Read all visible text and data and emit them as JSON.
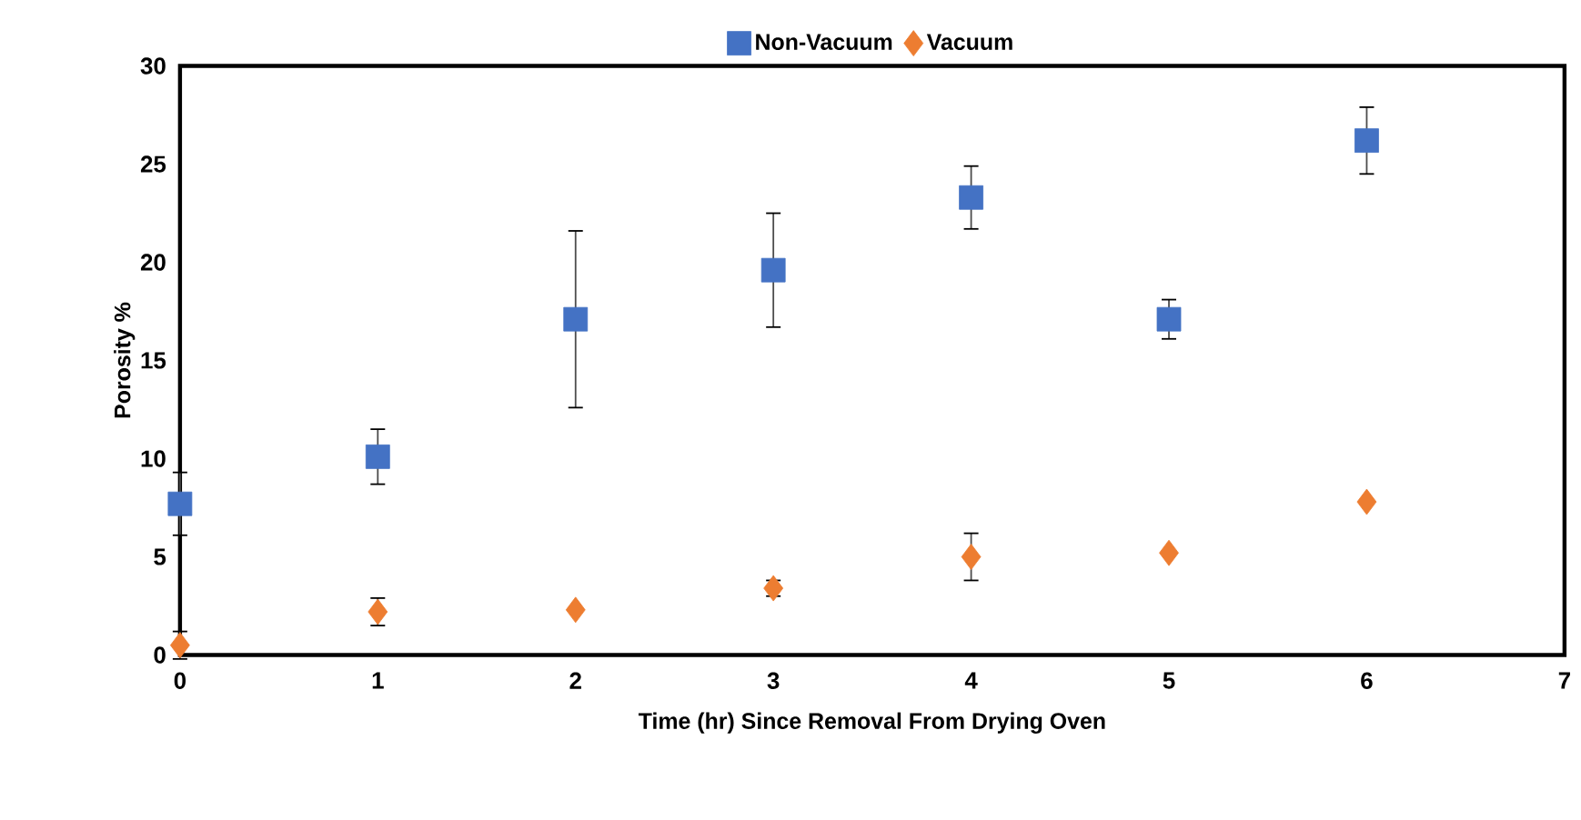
{
  "chart_data": {
    "type": "scatter",
    "xlabel": "Time (hr) Since Removal From Drying Oven",
    "ylabel": "Porosity %",
    "xlim": [
      0,
      7
    ],
    "xticks": [
      0,
      1,
      2,
      3,
      4,
      5,
      6,
      7
    ],
    "ylim": [
      0,
      30
    ],
    "yticks": [
      0,
      5,
      10,
      15,
      20,
      25,
      30
    ],
    "grid": false,
    "legend": "top",
    "series": [
      {
        "name": "Non-Vacuum",
        "color": "#4472c4",
        "marker": "square",
        "x": [
          0,
          1,
          2,
          3,
          4,
          5,
          6
        ],
        "values": [
          7.7,
          10.1,
          17.1,
          19.6,
          23.3,
          17.1,
          26.2
        ],
        "errors": [
          1.6,
          1.4,
          4.5,
          2.9,
          1.6,
          1.0,
          1.7
        ]
      },
      {
        "name": "Vacuum",
        "color": "#ed7d31",
        "marker": "diamond",
        "x": [
          0,
          1,
          2,
          3,
          4,
          5,
          6
        ],
        "values": [
          0.5,
          2.2,
          2.3,
          3.4,
          5.0,
          5.2,
          7.8
        ],
        "errors": [
          0.7,
          0.7,
          null,
          0.4,
          1.2,
          null,
          null
        ]
      }
    ]
  }
}
